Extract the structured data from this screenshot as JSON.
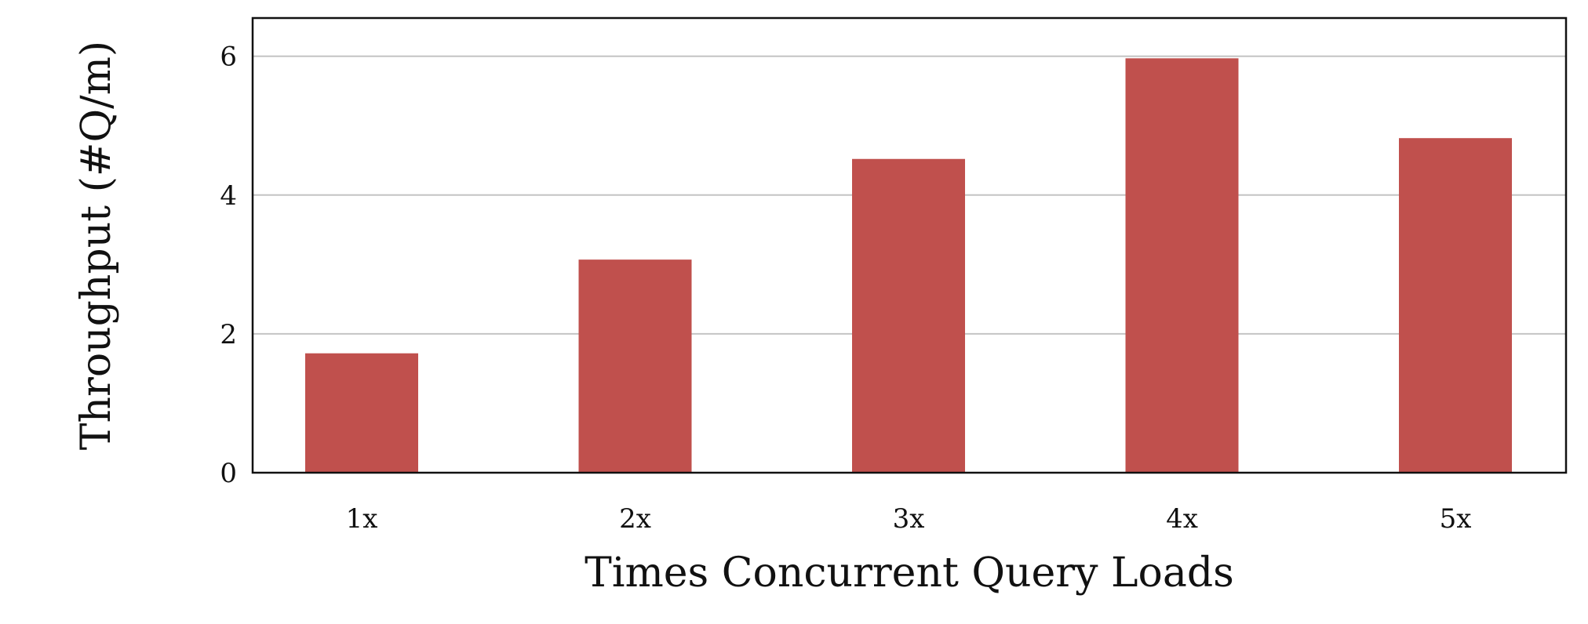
{
  "chart_data": {
    "type": "bar",
    "categories": [
      "1x",
      "2x",
      "3x",
      "4x",
      "5x"
    ],
    "values": [
      1.72,
      3.07,
      4.52,
      5.97,
      4.82
    ],
    "xlabel": "Times Concurrent Query Loads",
    "ylabel": "Throughput (#Q/m)",
    "ylim": [
      0,
      6.55
    ],
    "yticks": [
      0,
      2,
      4,
      6
    ],
    "grid": true,
    "bar_color": "#c0504d"
  }
}
